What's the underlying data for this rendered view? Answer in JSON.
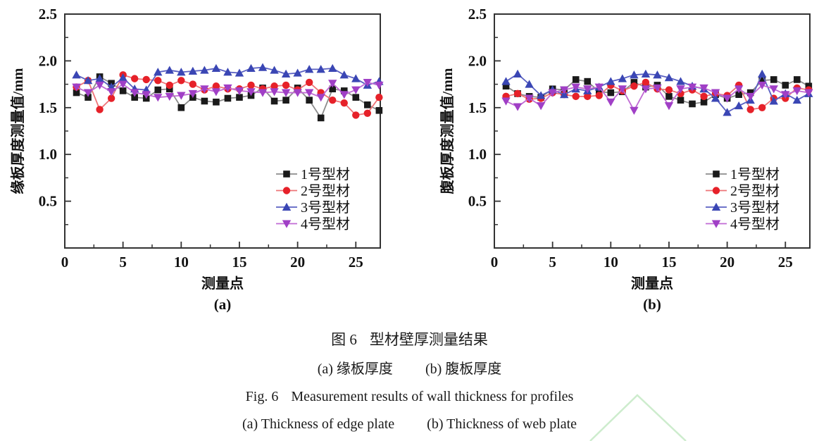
{
  "figure": {
    "title_cn_label": "图 6",
    "title_cn": "型材壁厚测量结果",
    "sub_cn_a": "(a) 缘板厚度",
    "sub_cn_b": "(b) 腹板厚度",
    "title_en_label": "Fig. 6",
    "title_en": "Measurement results of wall thickness for profiles",
    "sub_en_a": "(a) Thickness of edge plate",
    "sub_en_b": "(b) Thickness of web plate"
  },
  "watermark": {
    "color": "#cdeccd"
  },
  "chart_data": [
    {
      "type": "line",
      "subplot_label": "(a)",
      "xlabel": "测量点",
      "ylabel": "缘板厚度测量值/mm",
      "xlim": [
        0,
        27.1
      ],
      "ylim": [
        0,
        2.5
      ],
      "x_ticks": [
        0,
        5,
        10,
        15,
        20,
        25
      ],
      "x_minor_step": 2.5,
      "y_ticks": [
        0.5,
        1.0,
        1.5,
        2.0,
        2.5
      ],
      "y_tick_labels": [
        "0.5",
        "1.0",
        "1.5",
        "2.0",
        "2.5"
      ],
      "y_minor_step": 0.25,
      "grid": false,
      "legend_position": "lower right",
      "x": [
        1,
        2,
        3,
        4,
        5,
        6,
        7,
        8,
        9,
        10,
        11,
        12,
        13,
        14,
        15,
        16,
        17,
        18,
        19,
        20,
        21,
        22,
        23,
        24,
        25,
        26,
        27
      ],
      "series": [
        {
          "name": "1号型材",
          "marker": "square",
          "color": "#1a1a1a",
          "line_color": "#8c8c8c",
          "values": [
            1.66,
            1.61,
            1.83,
            1.76,
            1.68,
            1.61,
            1.6,
            1.69,
            1.7,
            1.5,
            1.61,
            1.57,
            1.56,
            1.6,
            1.61,
            1.63,
            1.71,
            1.57,
            1.58,
            1.71,
            1.58,
            1.39,
            1.7,
            1.68,
            1.61,
            1.53,
            1.47
          ]
        },
        {
          "name": "2号型材",
          "marker": "circle",
          "color": "#e62129",
          "line_color": "#ee7478",
          "values": [
            1.72,
            1.79,
            1.48,
            1.6,
            1.85,
            1.81,
            1.8,
            1.79,
            1.74,
            1.79,
            1.75,
            1.69,
            1.73,
            1.7,
            1.7,
            1.74,
            1.7,
            1.73,
            1.74,
            1.69,
            1.77,
            1.66,
            1.58,
            1.55,
            1.42,
            1.44,
            1.61
          ]
        },
        {
          "name": "3号型材",
          "marker": "triangle-up",
          "color": "#3a46b4",
          "line_color": "#5a60c2",
          "values": [
            1.85,
            1.79,
            1.81,
            1.72,
            1.82,
            1.7,
            1.69,
            1.88,
            1.9,
            1.88,
            1.89,
            1.9,
            1.92,
            1.88,
            1.87,
            1.92,
            1.93,
            1.9,
            1.86,
            1.87,
            1.91,
            1.91,
            1.92,
            1.85,
            1.81,
            1.74,
            1.78
          ]
        },
        {
          "name": "4号型材",
          "marker": "triangle-down",
          "color": "#a03fc6",
          "line_color": "#c06ad4",
          "values": [
            1.72,
            1.66,
            1.74,
            1.67,
            1.75,
            1.66,
            1.64,
            1.61,
            1.62,
            1.63,
            1.65,
            1.7,
            1.67,
            1.71,
            1.68,
            1.67,
            1.66,
            1.67,
            1.66,
            1.66,
            1.66,
            1.61,
            1.76,
            1.64,
            1.69,
            1.77,
            1.74
          ]
        }
      ]
    },
    {
      "type": "line",
      "subplot_label": "(b)",
      "xlabel": "测量点",
      "ylabel": "腹板厚度测量值/mm",
      "xlim": [
        0,
        27.1
      ],
      "ylim": [
        0,
        2.5
      ],
      "x_ticks": [
        0,
        5,
        10,
        15,
        20,
        25
      ],
      "x_minor_step": 2.5,
      "y_ticks": [
        0.5,
        1.0,
        1.5,
        2.0,
        2.5
      ],
      "y_tick_labels": [
        "0.5",
        "1.0",
        "1.5",
        "2.0",
        "2.5"
      ],
      "y_minor_step": 0.25,
      "grid": false,
      "legend_position": "lower right",
      "x": [
        1,
        2,
        3,
        4,
        5,
        6,
        7,
        8,
        9,
        10,
        11,
        12,
        13,
        14,
        15,
        16,
        17,
        18,
        19,
        20,
        21,
        22,
        23,
        24,
        25,
        26,
        27
      ],
      "series": [
        {
          "name": "1号型材",
          "marker": "square",
          "color": "#1a1a1a",
          "line_color": "#8c8c8c",
          "values": [
            1.73,
            1.65,
            1.62,
            1.61,
            1.7,
            1.69,
            1.8,
            1.78,
            1.67,
            1.66,
            1.67,
            1.77,
            1.72,
            1.74,
            1.62,
            1.58,
            1.54,
            1.56,
            1.64,
            1.6,
            1.64,
            1.66,
            1.79,
            1.8,
            1.74,
            1.8,
            1.73
          ]
        },
        {
          "name": "2号型材",
          "marker": "circle",
          "color": "#e62129",
          "line_color": "#ee7478",
          "values": [
            1.62,
            1.65,
            1.59,
            1.6,
            1.66,
            1.64,
            1.62,
            1.62,
            1.63,
            1.74,
            1.68,
            1.73,
            1.77,
            1.7,
            1.69,
            1.65,
            1.69,
            1.62,
            1.65,
            1.63,
            1.74,
            1.48,
            1.5,
            1.6,
            1.6,
            1.71,
            1.69
          ]
        },
        {
          "name": "3号型材",
          "marker": "triangle-up",
          "color": "#3a46b4",
          "line_color": "#5a60c2",
          "values": [
            1.78,
            1.86,
            1.75,
            1.63,
            1.69,
            1.64,
            1.7,
            1.68,
            1.72,
            1.78,
            1.81,
            1.85,
            1.86,
            1.85,
            1.82,
            1.78,
            1.73,
            1.7,
            1.6,
            1.45,
            1.52,
            1.58,
            1.86,
            1.57,
            1.65,
            1.58,
            1.65
          ]
        },
        {
          "name": "4号型材",
          "marker": "triangle-down",
          "color": "#a03fc6",
          "line_color": "#c06ad4",
          "values": [
            1.57,
            1.51,
            1.6,
            1.52,
            1.66,
            1.69,
            1.72,
            1.7,
            1.72,
            1.56,
            1.7,
            1.47,
            1.7,
            1.71,
            1.52,
            1.7,
            1.72,
            1.71,
            1.66,
            1.6,
            1.7,
            1.62,
            1.74,
            1.7,
            1.64,
            1.68,
            1.66
          ]
        }
      ]
    }
  ]
}
